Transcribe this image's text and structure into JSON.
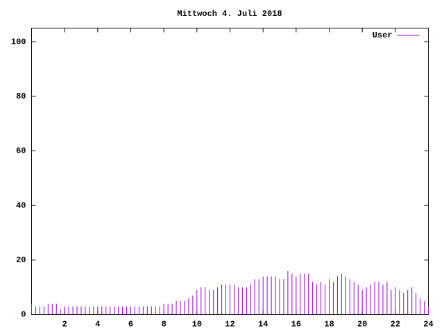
{
  "chart_data": {
    "type": "impulses",
    "title": "Mittwoch 4. Juli 2018",
    "xlim": [
      0,
      24
    ],
    "ylim": [
      0,
      105
    ],
    "xticks": [
      2,
      4,
      6,
      8,
      10,
      12,
      14,
      16,
      18,
      20,
      22,
      24
    ],
    "yticks": [
      0,
      20,
      40,
      60,
      80,
      100
    ],
    "legend": "top-right",
    "x": [
      0,
      0.25,
      0.5,
      0.75,
      1,
      1.25,
      1.5,
      1.75,
      2,
      2.25,
      2.5,
      2.75,
      3,
      3.25,
      3.5,
      3.75,
      4,
      4.25,
      4.5,
      4.75,
      5,
      5.25,
      5.5,
      5.75,
      6,
      6.25,
      6.5,
      6.75,
      7,
      7.25,
      7.5,
      7.75,
      8,
      8.25,
      8.5,
      8.75,
      9,
      9.25,
      9.5,
      9.75,
      10,
      10.25,
      10.5,
      10.75,
      11,
      11.25,
      11.5,
      11.75,
      12,
      12.25,
      12.5,
      12.75,
      13,
      13.25,
      13.5,
      13.75,
      14,
      14.25,
      14.5,
      14.75,
      15,
      15.25,
      15.5,
      15.75,
      16,
      16.25,
      16.5,
      16.75,
      17,
      17.25,
      17.5,
      17.75,
      18,
      18.25,
      18.5,
      18.75,
      19,
      19.25,
      19.5,
      19.75,
      20,
      20.25,
      20.5,
      20.75,
      21,
      21.25,
      21.5,
      21.75,
      22,
      22.25,
      22.5,
      22.75,
      23,
      23.25,
      23.5,
      23.75,
      24
    ],
    "series": [
      {
        "name": "User",
        "color": "#9400d3",
        "values": [
          4,
          3,
          3,
          3,
          4,
          4,
          4,
          2,
          3,
          3,
          3,
          3,
          3,
          3,
          3,
          3,
          3,
          3,
          3,
          3,
          3,
          3,
          3,
          3,
          3,
          3,
          3,
          3,
          3,
          3,
          3,
          3,
          4,
          4,
          4,
          5,
          5,
          5,
          6,
          7,
          9,
          10,
          10,
          9,
          9,
          10,
          11,
          11,
          11,
          11,
          10,
          10,
          10,
          11,
          13,
          13,
          14,
          14,
          14,
          14,
          13,
          13,
          16,
          15,
          14,
          15,
          15,
          15,
          12,
          11,
          12,
          11,
          13,
          12,
          14,
          15,
          14,
          13,
          12,
          11,
          9,
          10,
          11,
          12,
          12,
          11,
          12,
          9,
          10,
          9,
          8,
          9,
          10,
          8,
          6,
          5,
          3
        ]
      }
    ]
  }
}
